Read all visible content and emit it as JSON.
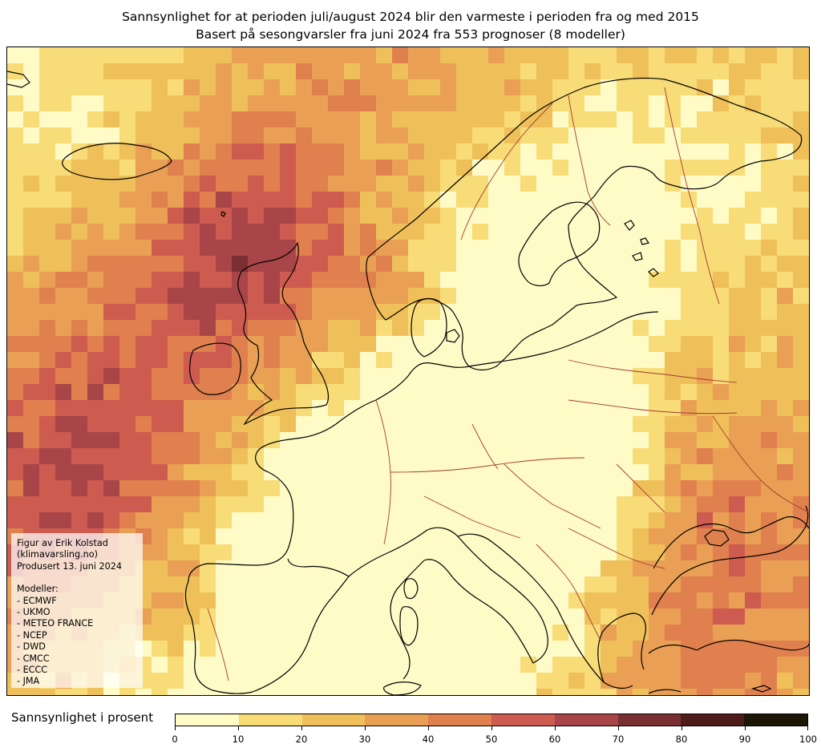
{
  "title_line1": "Sannsynlighet for at perioden juli/august 2024 blir den varmeste i perioden fra og med 2015",
  "title_line2": "Basert på sesongvarsler fra juni 2024 fra 553 prognoser (8 modeller)",
  "credit": {
    "line1": "Figur av Erik Kolstad",
    "line2": "(klimavarsling.no)",
    "line3": "Produsert 13. juni 2024",
    "models_heading": "Modeller:",
    "models": [
      "- ECMWF",
      "- UKMO",
      "- METEO FRANCE",
      "- NCEP",
      "- DWD",
      "- CMCC",
      "- ECCC",
      "- JMA"
    ]
  },
  "colorbar": {
    "label": "Sannsynlighet i prosent",
    "ticks": [
      "0",
      "10",
      "20",
      "30",
      "40",
      "50",
      "60",
      "70",
      "80",
      "90",
      "100"
    ],
    "colors": [
      "#fffbc7",
      "#f7dc78",
      "#efc05a",
      "#e9a054",
      "#e0804e",
      "#cd5b4f",
      "#a84549",
      "#7a2f32",
      "#4e1c1a",
      "#1c1606"
    ]
  }
}
